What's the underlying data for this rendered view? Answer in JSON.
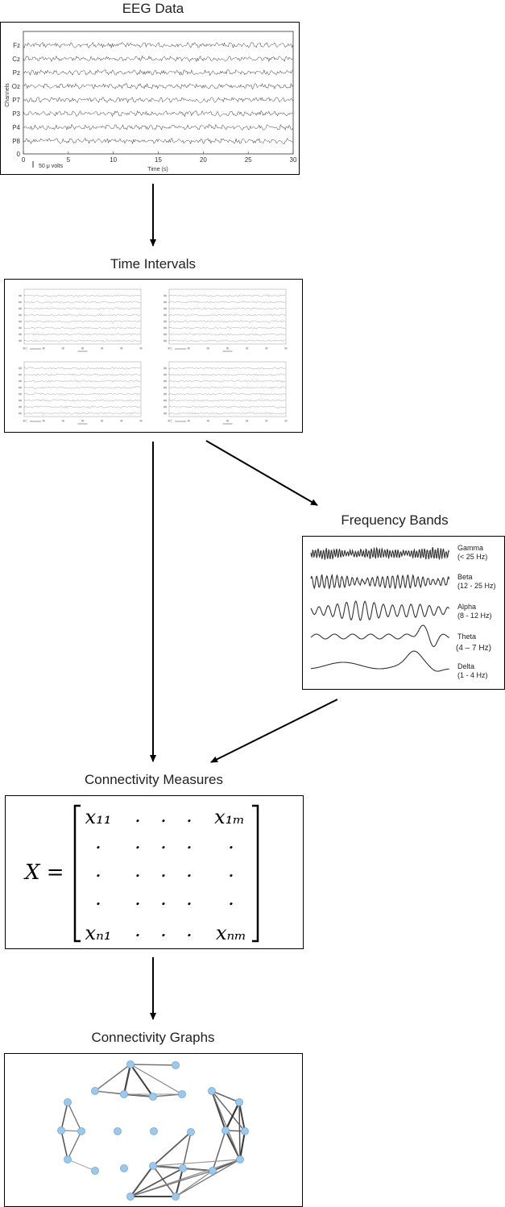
{
  "titles": {
    "eeg": "EEG Data",
    "intervals": "Time Intervals",
    "bands": "Frequency Bands",
    "connectivity": "Connectivity Measures",
    "graphs": "Connectivity Graphs"
  },
  "eeg_plot": {
    "channels": [
      "Fz",
      "Cz",
      "Pz",
      "Oz",
      "P7",
      "P3",
      "P4",
      "P8"
    ],
    "y_axis_label": "Channels",
    "y_zero_label": "0",
    "x_axis_label": "Time (s)",
    "x_ticks": [
      "0",
      "5",
      "10",
      "15",
      "20",
      "25",
      "30"
    ],
    "scale_label": "50 μ volts"
  },
  "bands": [
    {
      "name": "Gamma",
      "range": "(< 25 Hz)"
    },
    {
      "name": "Beta",
      "range": "(12 - 25 Hz)"
    },
    {
      "name": "Alpha",
      "range": "(8 - 12 Hz)"
    },
    {
      "name": "Theta",
      "range": "(4 – 7 Hz)"
    },
    {
      "name": "Delta",
      "range": "(1 - 4 Hz)"
    }
  ],
  "matrix": {
    "lhs": "X =",
    "row1": [
      "x₁₁",
      ".",
      ".",
      ".",
      "x₁ₘ"
    ],
    "row2": [
      ".",
      ".",
      ".",
      ".",
      "."
    ],
    "row3": [
      ".",
      ".",
      ".",
      ".",
      "."
    ],
    "row4": [
      ".",
      ".",
      ".",
      ".",
      "."
    ],
    "row5": [
      "xₙ₁",
      ".",
      ".",
      ".",
      "xₙₘ"
    ]
  },
  "colors": {
    "node_fill": "#9cc8ec",
    "node_stroke": "#6fa8d6",
    "arrow": "#000000",
    "trace": "#333333"
  }
}
